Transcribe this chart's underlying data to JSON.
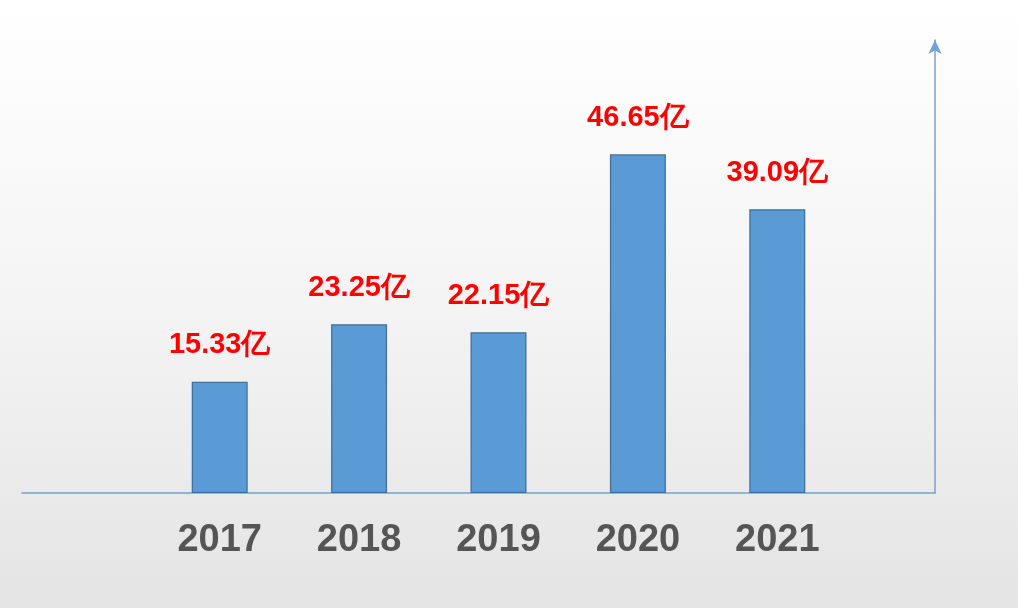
{
  "chart_data": {
    "type": "bar",
    "categories": [
      "2017",
      "2018",
      "2019",
      "2020",
      "2021"
    ],
    "values": [
      15.33,
      23.25,
      22.15,
      46.65,
      39.09
    ],
    "value_labels": [
      "15.33亿",
      "23.25亿",
      "22.15亿",
      "46.65亿",
      "39.09亿"
    ],
    "color": "#5b9bd5",
    "tick_labels": "x"
  }
}
